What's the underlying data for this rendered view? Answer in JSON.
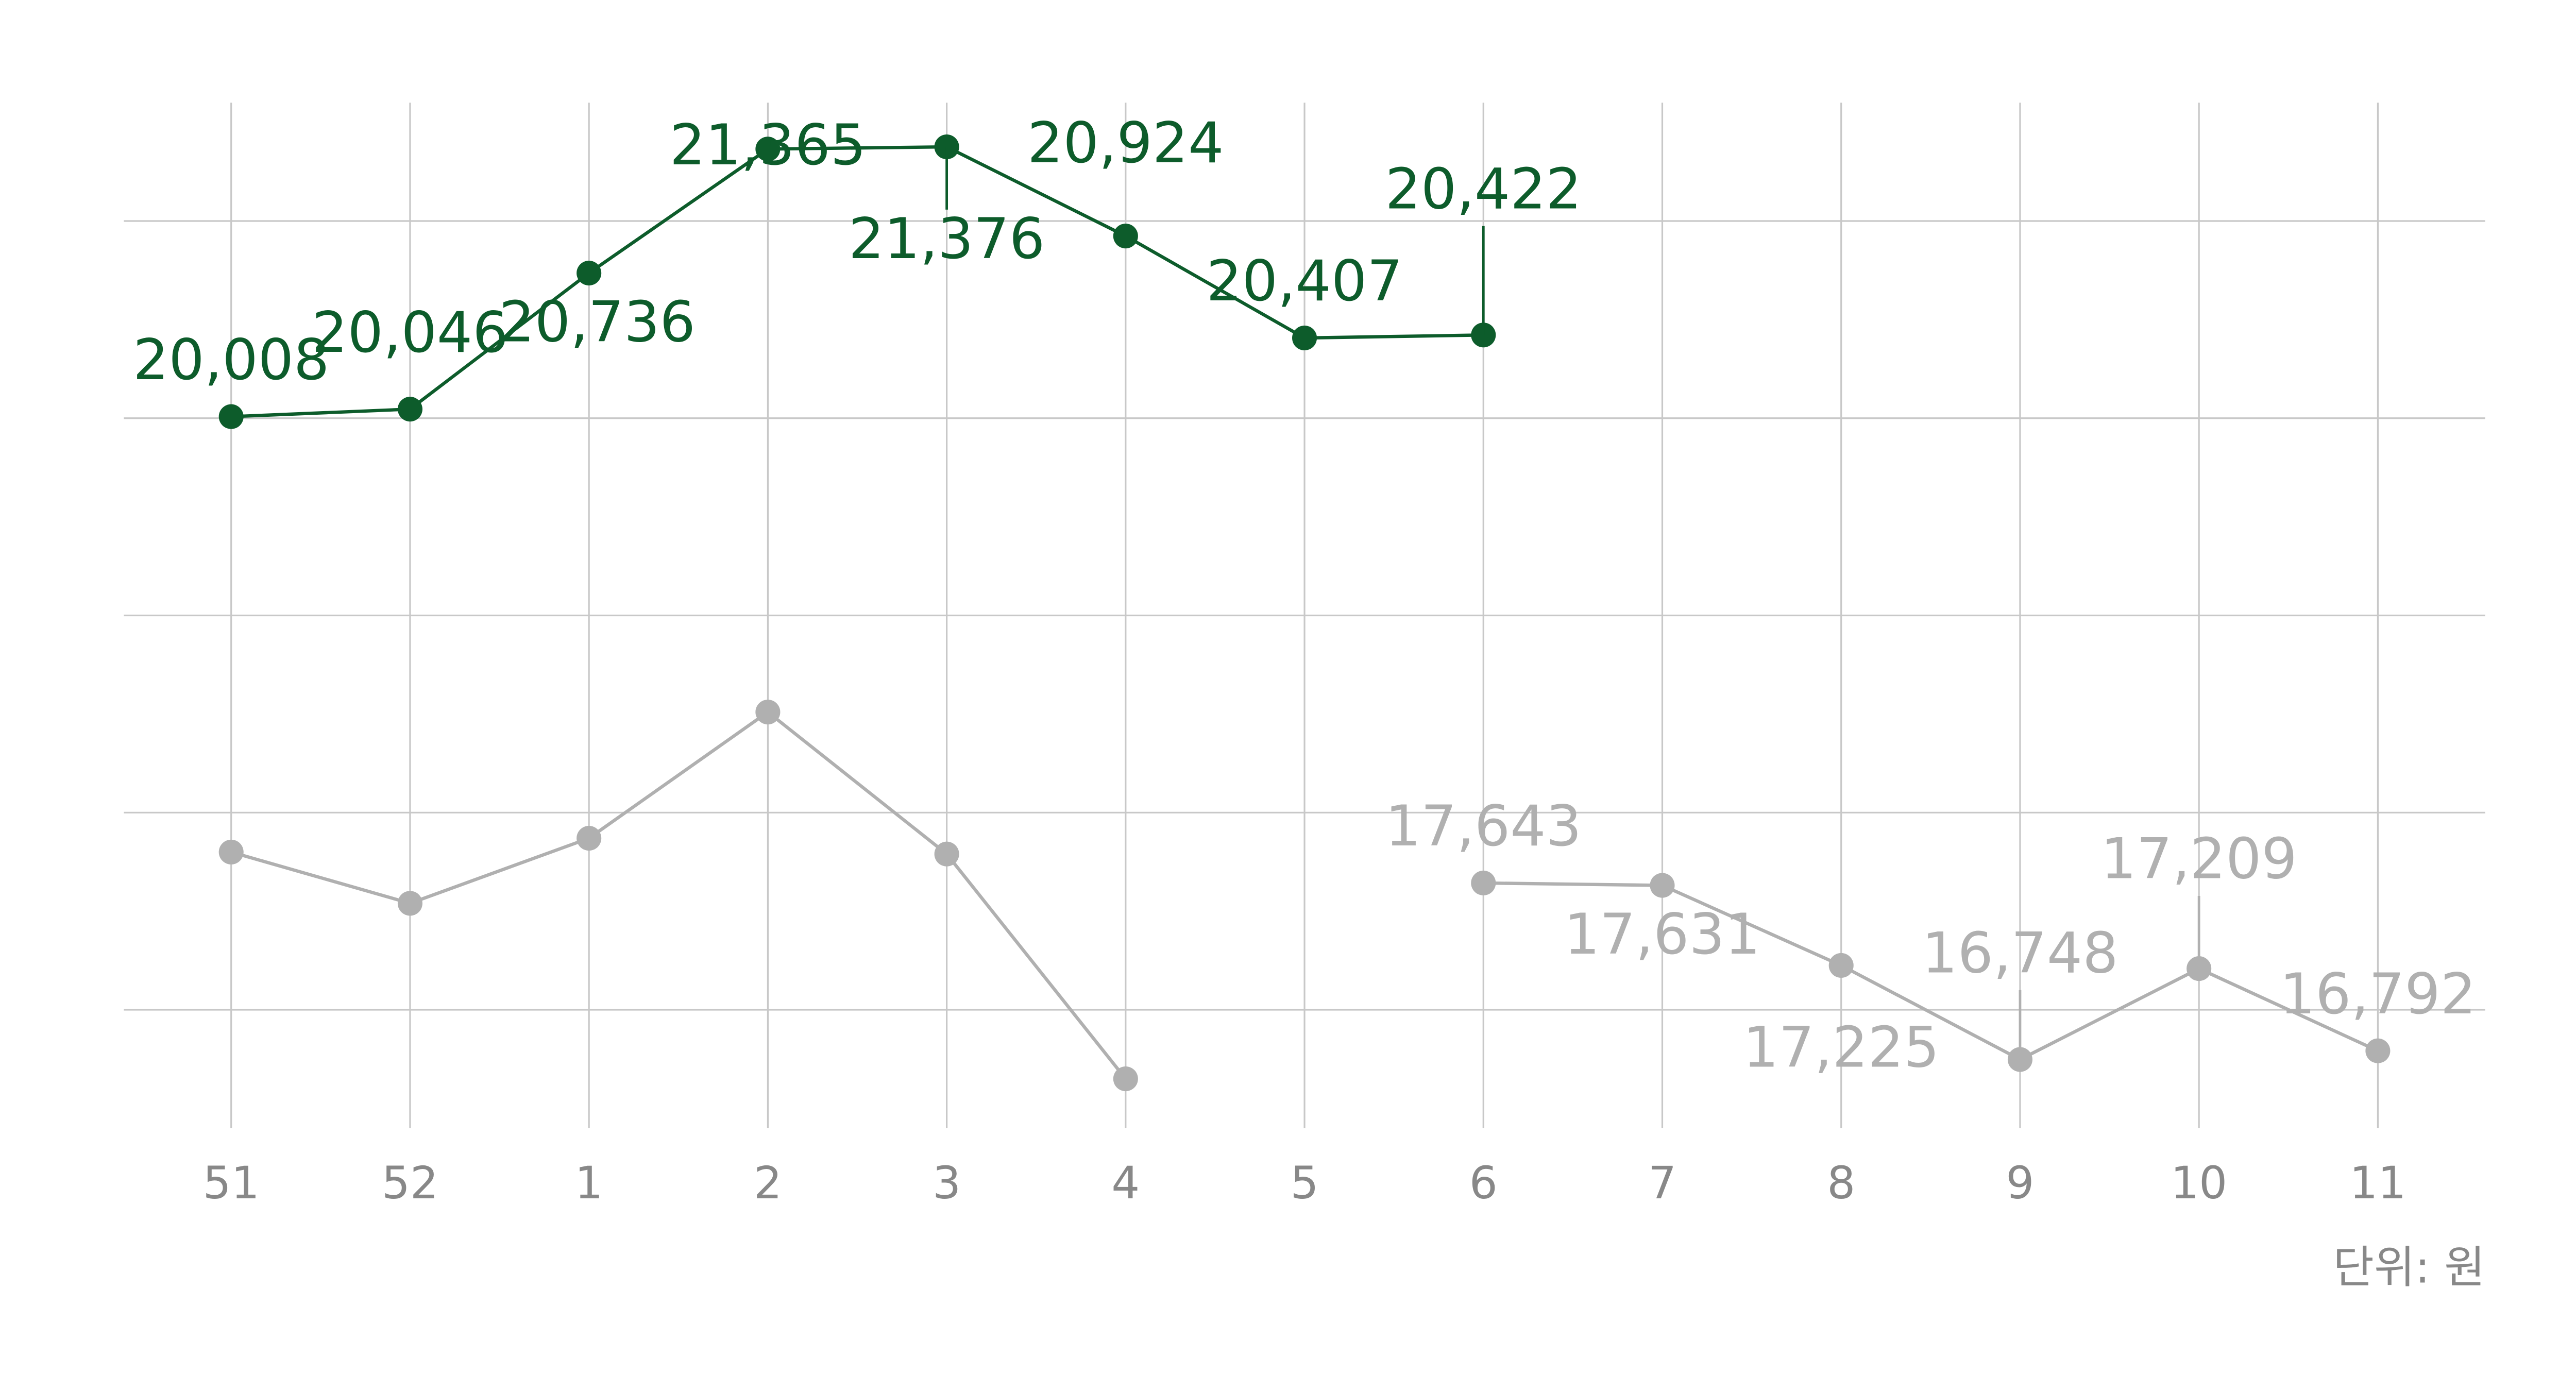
{
  "chart_data": {
    "type": "line",
    "categories": [
      "51",
      "52",
      "1",
      "2",
      "3",
      "4",
      "5",
      "6",
      "7",
      "8",
      "9",
      "10",
      "11"
    ],
    "series": [
      {
        "color": "#0d5c2b",
        "values": [
          20008,
          20046,
          20736,
          21365,
          21376,
          20924,
          20407,
          20422,
          null,
          null,
          null,
          null,
          null
        ],
        "value_labels": [
          "20,008",
          "20,046",
          "20,736",
          "21,365",
          "21,376",
          "20,924",
          "20,407",
          "20,422",
          null,
          null,
          null,
          null,
          null
        ]
      },
      {
        "color": "#b0b0b0",
        "values": [
          17800,
          17540,
          17870,
          18510,
          17790,
          16650,
          null,
          17643,
          17631,
          17225,
          16748,
          17209,
          16792
        ],
        "value_labels": [
          null,
          null,
          null,
          null,
          null,
          null,
          null,
          "17,643",
          "17,631",
          "17,225",
          "16,748",
          "17,209",
          "16,792"
        ]
      }
    ],
    "ylim": [
      16400,
      21600
    ],
    "yticks": [
      17000,
      18000,
      19000,
      20000,
      21000
    ],
    "grid": true,
    "unit_label": "단위: 원"
  }
}
